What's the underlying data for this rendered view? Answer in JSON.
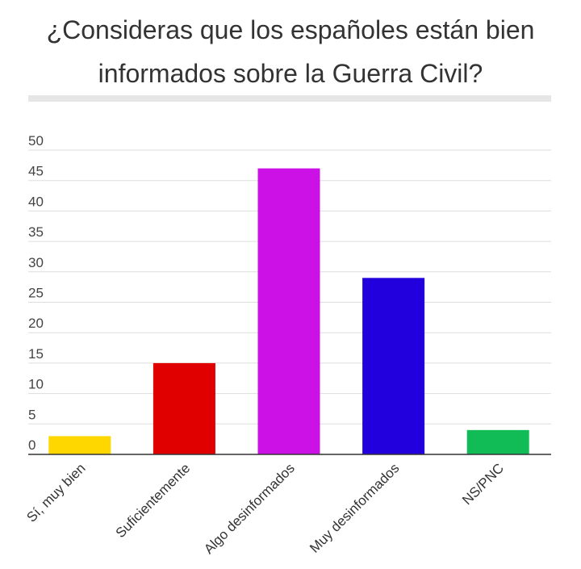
{
  "title_lines": [
    "¿Consideras que los españoles están bien",
    "informados sobre la Guerra Civil?"
  ],
  "chart_data": {
    "type": "bar",
    "title": "¿Consideras que los españoles están bien informados sobre la Guerra Civil?",
    "categories": [
      "Sí, muy bien",
      "Suficientemente",
      "Algo desinformados",
      "Muy desinformados",
      "NS/PNC"
    ],
    "values": [
      3,
      15,
      47,
      29,
      4
    ],
    "colors": [
      "#ffd700",
      "#e00000",
      "#cc11e6",
      "#2200dd",
      "#11bb55"
    ],
    "ylim": [
      0,
      50
    ],
    "yticks": [
      0,
      5,
      10,
      15,
      20,
      25,
      30,
      35,
      40,
      45,
      50
    ],
    "grid": true,
    "xlabel": "",
    "ylabel": ""
  }
}
